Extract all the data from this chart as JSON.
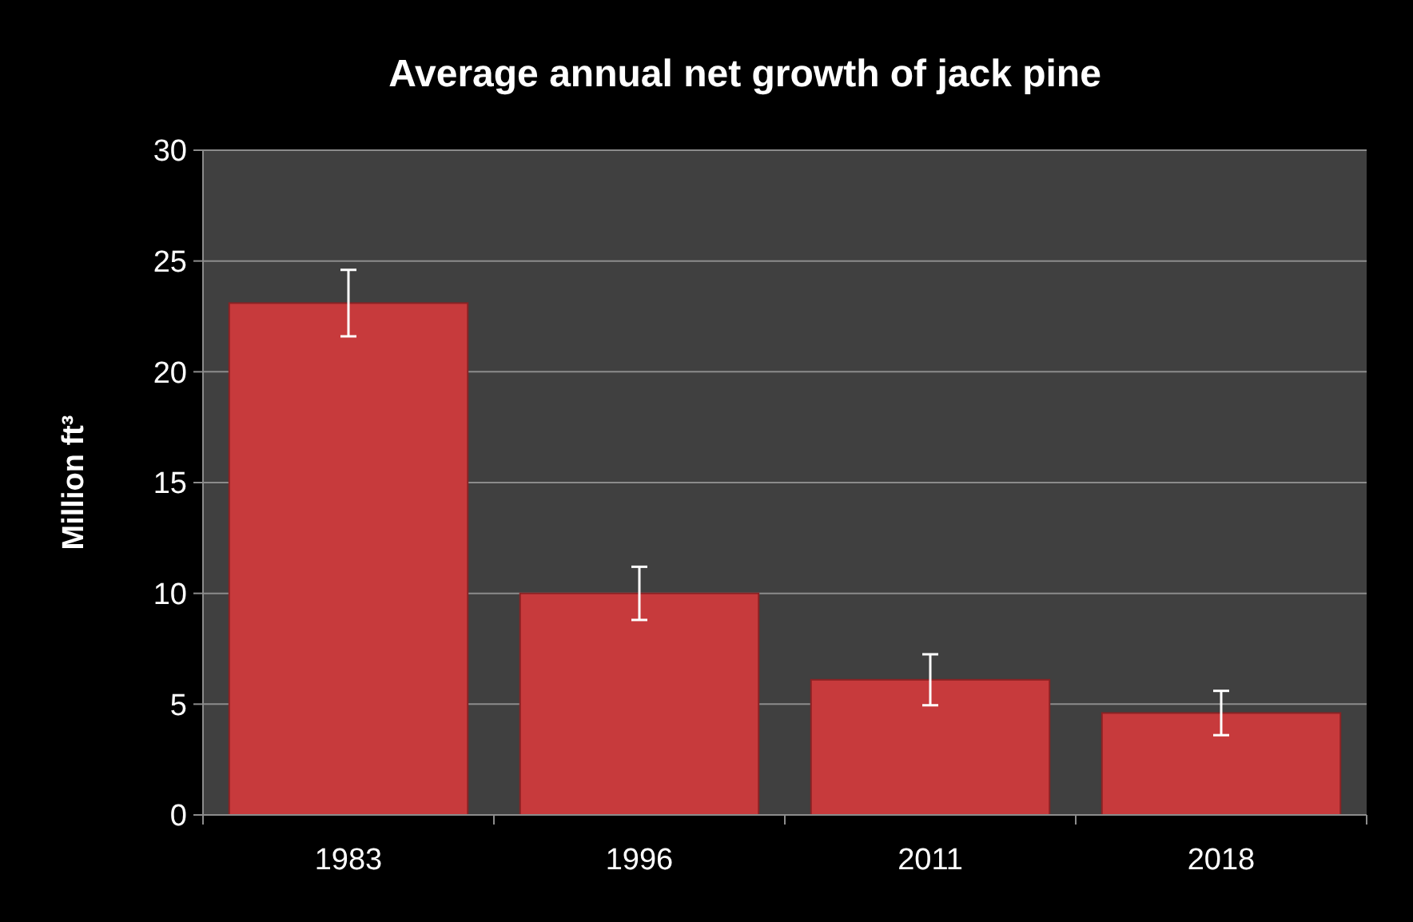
{
  "chart_data": {
    "type": "bar",
    "title": "Average annual net growth of jack pine",
    "ylabel": "Million ft³",
    "categories": [
      "1983",
      "1996",
      "2011",
      "2018"
    ],
    "values": [
      23.1,
      10.0,
      6.1,
      4.6
    ],
    "errors": [
      1.5,
      1.2,
      1.15,
      1.0
    ],
    "color": "#c73a3c",
    "ylim": [
      0,
      30
    ],
    "yticks": [
      0,
      5,
      10,
      15,
      20,
      25,
      30
    ],
    "grid": "y"
  }
}
